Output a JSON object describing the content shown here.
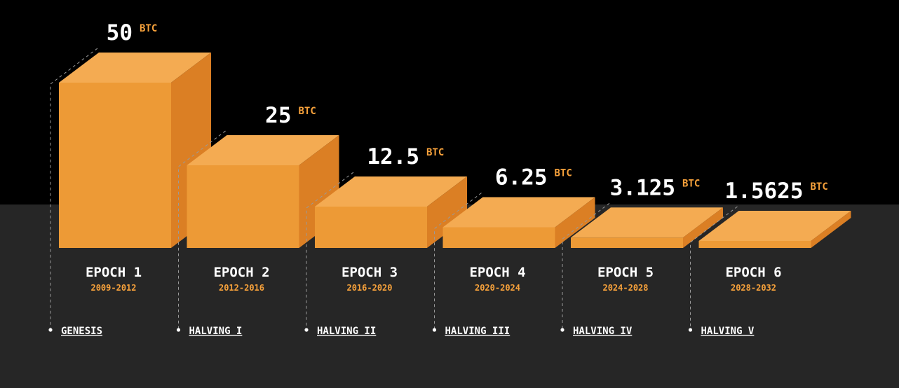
{
  "colors": {
    "face_front": "#ED9A36",
    "face_top": "#F4AB52",
    "face_side": "#DB7F24",
    "accent": "#F6A13B",
    "background_top": "#000000",
    "background_bottom": "#262626",
    "text": "#FFFFFF"
  },
  "chart_data": {
    "type": "bar",
    "title": "",
    "unit": "BTC",
    "categories": [
      "EPOCH 1",
      "EPOCH 2",
      "EPOCH 3",
      "EPOCH 4",
      "EPOCH 5",
      "EPOCH 6"
    ],
    "periods": [
      "2009-2012",
      "2012-2016",
      "2016-2020",
      "2020-2024",
      "2024-2028",
      "2028-2032"
    ],
    "value_labels": [
      "50",
      "25",
      "12.5",
      "6.25",
      "3.125",
      "1.5625"
    ],
    "values": [
      50,
      25,
      12.5,
      6.25,
      3.125,
      1.5625
    ],
    "events": [
      "GENESIS",
      "HALVING I",
      "HALVING II",
      "HALVING III",
      "HALVING IV",
      "HALVING V"
    ]
  }
}
